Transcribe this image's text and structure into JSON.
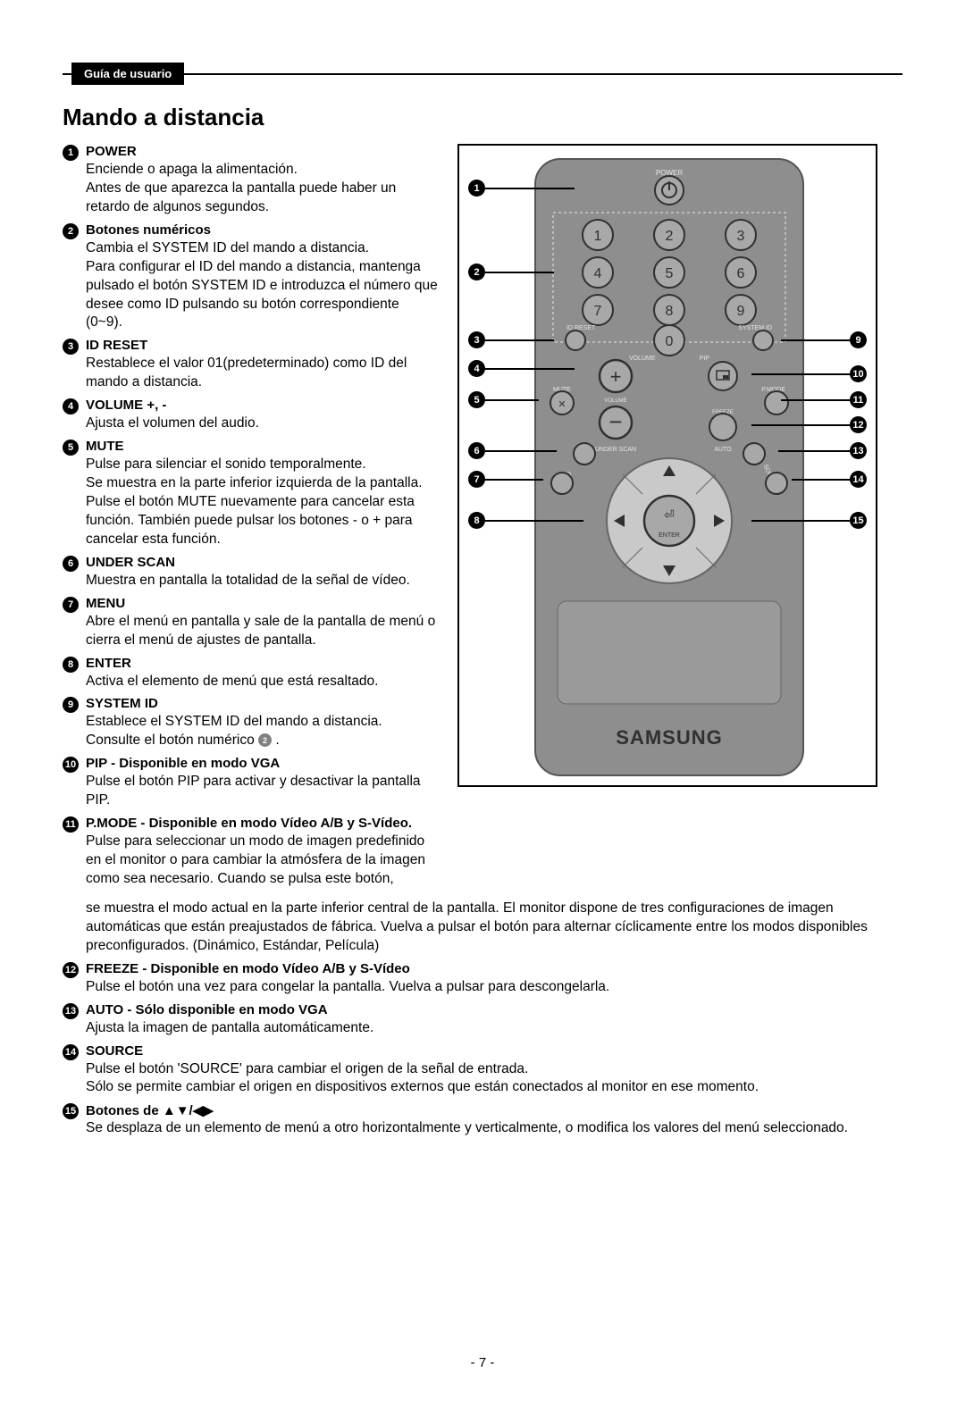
{
  "header_tab": "Guía de usuario",
  "page_title": "Mando a distancia",
  "page_number": "- 7 -",
  "brand": "SAMSUNG",
  "remote_labels": {
    "power": "POWER",
    "id_reset": "ID RESET",
    "system_id": "SYSTEM ID",
    "volume": "VOLUME",
    "pip": "PIP",
    "mute": "MUTE",
    "pmode": "P.MODE",
    "freeze": "FREEZE",
    "under_scan": "UNDER SCAN",
    "auto": "AUTO",
    "menu": "MENU",
    "source": "SOURCE",
    "enter": "ENTER"
  },
  "items": {
    "i1": {
      "num": "1",
      "title": "POWER",
      "desc": "Enciende o apaga la alimentación.\nAntes de que aparezca la pantalla puede haber un retardo de algunos segundos."
    },
    "i2": {
      "num": "2",
      "title": "Botones numéricos",
      "desc": "Cambia el SYSTEM ID del mando a distancia.\nPara configurar el ID del mando a distancia, mantenga pulsado el botón SYSTEM ID e introduzca el número que desee como ID pulsando su botón correspondiente (0~9)."
    },
    "i3": {
      "num": "3",
      "title": "ID RESET",
      "desc": "Restablece el valor 01(predeterminado) como ID del mando a distancia."
    },
    "i4": {
      "num": "4",
      "title": "VOLUME +,  -",
      "desc": "Ajusta el volumen del audio."
    },
    "i5": {
      "num": "5",
      "title": "MUTE",
      "desc": "Pulse para silenciar el sonido temporalmente.\nSe muestra en la parte inferior izquierda de la pantalla. Pulse el botón MUTE nuevamente para cancelar esta función. También puede pulsar los botones - o + para cancelar esta función."
    },
    "i6": {
      "num": "6",
      "title": "UNDER SCAN",
      "desc": "Muestra en pantalla la totalidad de la señal de vídeo."
    },
    "i7": {
      "num": "7",
      "title": "MENU",
      "desc": "Abre el menú en pantalla y sale de la pantalla de menú o cierra el menú de ajustes de pantalla."
    },
    "i8": {
      "num": "8",
      "title": "ENTER",
      "desc": "Activa el elemento de menú que está resaltado."
    },
    "i9": {
      "num": "9",
      "title": "SYSTEM ID",
      "desc_pre": "Establece el SYSTEM ID del mando a distancia. Consulte el botón numérico ",
      "ref": "2",
      "desc_post": " ."
    },
    "i10": {
      "num": "10",
      "title": "PIP - Disponible en modo VGA",
      "desc": "Pulse el botón PIP para activar y desactivar la pantalla PIP."
    },
    "i11": {
      "num": "11",
      "title": "P.MODE - Disponible en modo Vídeo A/B y S-Vídeo.",
      "desc1": "Pulse para seleccionar un modo de imagen predefinido en el monitor o para cambiar la atmósfera de la imagen como sea necesario. Cuando se pulsa este botón,",
      "desc2": "se muestra el modo actual en la parte inferior central de la pantalla. El monitor dispone de tres configuraciones de imagen automáticas que están preajustados de fábrica. Vuelva a pulsar el botón para alternar cíclicamente entre los modos disponibles preconfigurados. (Dinámico, Estándar, Película)"
    },
    "i12": {
      "num": "12",
      "title": "FREEZE - Disponible en modo Vídeo A/B y S-Vídeo",
      "desc": "Pulse el botón una vez para congelar la pantalla. Vuelva a pulsar para descongelarla."
    },
    "i13": {
      "num": "13",
      "title": "AUTO - Sólo disponible en modo VGA",
      "desc": "Ajusta la imagen de pantalla automáticamente."
    },
    "i14": {
      "num": "14",
      "title": "SOURCE",
      "desc": "Pulse el botón 'SOURCE' para cambiar el origen de la señal de entrada.\nSólo se permite cambiar el origen en dispositivos externos que están conectados al monitor en ese momento."
    },
    "i15": {
      "num": "15",
      "title_pre": "Botones de ",
      "arrows": "▲▼/◀▶",
      "desc": "Se desplaza de un elemento de menú a otro horizontalmente y verticalmente, o modifica los valores del menú seleccionado."
    }
  },
  "callouts_left": [
    "1",
    "2",
    "3",
    "4",
    "5",
    "6",
    "7",
    "8"
  ],
  "callouts_right": [
    "9",
    "10",
    "11",
    "12",
    "13",
    "14",
    "15"
  ],
  "colors": {
    "remote_body": "#8e8e8e",
    "remote_body_dark": "#6b6b6b",
    "button_face": "#a8a8a8",
    "button_border": "#303030",
    "nav_ring": "#c9c9c9",
    "text_light": "#e5e5e5",
    "dashed": "#cccccc"
  }
}
